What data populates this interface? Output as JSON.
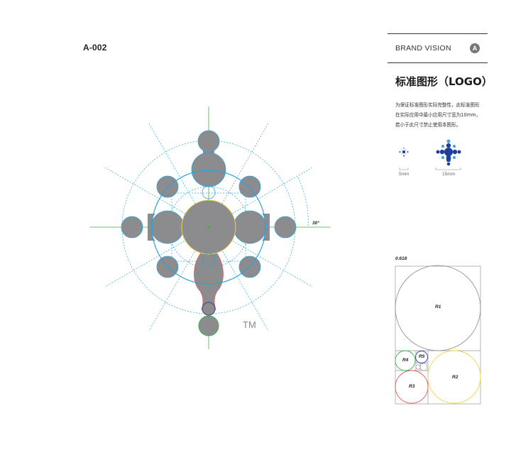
{
  "header": {
    "page_code": "A-002",
    "section": "BRAND VISION",
    "section_badge": "A"
  },
  "title": "标准图形（LOGO）",
  "description_lines": [
    "为保证标准图形实际完整性，此标准图形",
    "在实际应用中最小应用尺寸宽为10mm，",
    "若小于此尺寸禁止使用本图形。"
  ],
  "min_sizes": {
    "small_label": "5mm",
    "large_label": "15mm"
  },
  "construction": {
    "trademark": "TM",
    "angle_label": "30°"
  },
  "golden_ratio": {
    "ratio_label": "0.618",
    "circles": [
      "R1",
      "R2",
      "R3",
      "R4",
      "R5"
    ]
  },
  "colors": {
    "mark_fill": "#8c8c8e",
    "guide_blue": "#29a3dc",
    "guide_green": "#39b54a",
    "guide_red": "#e05a5a",
    "guide_yellow": "#f2d24b",
    "guide_navy": "#3a3f8f",
    "logo_dark_blue": "#1e3f9a",
    "logo_light_blue": "#3aa0de"
  }
}
